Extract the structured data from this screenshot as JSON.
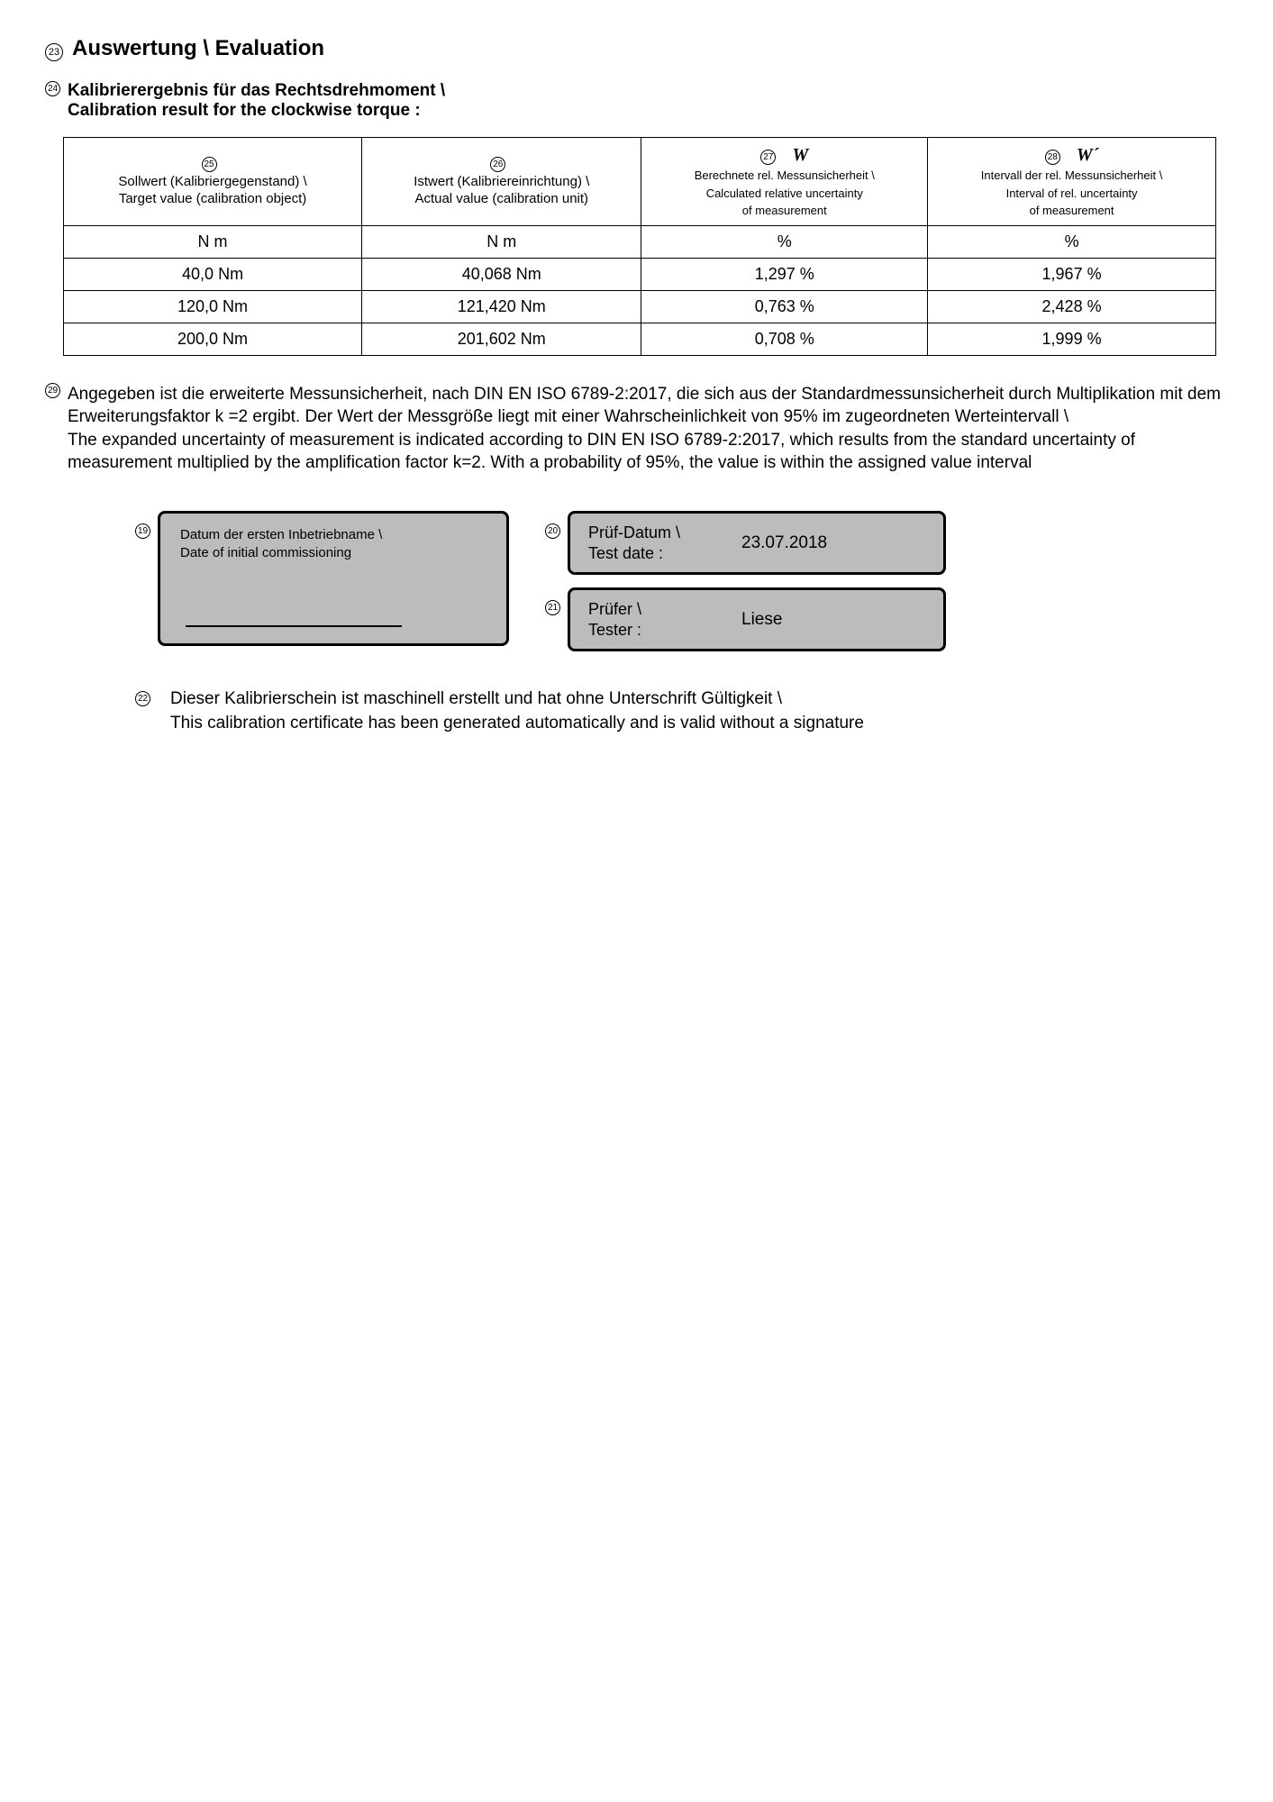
{
  "section": {
    "marker": "23",
    "title": "Auswertung \\ Evaluation"
  },
  "subheading": {
    "marker": "24",
    "line1": "Kalibrierergebnis für das Rechtsdrehmoment \\",
    "line2": "Calibration result for the clockwise torque :"
  },
  "table": {
    "columns": [
      {
        "marker": "25",
        "symbol": "",
        "main": "Sollwert (Kalibriergegenstand) \\",
        "sub": "Target value (calibration object)",
        "unit": "N m"
      },
      {
        "marker": "26",
        "symbol": "",
        "main": "Istwert (Kalibriereinrichtung) \\",
        "sub": "Actual value (calibration unit)",
        "unit": "N m"
      },
      {
        "marker": "27",
        "symbol": "W",
        "main": "Berechnete rel. Messunsicherheit \\",
        "sub1": "Calculated relative uncertainty",
        "sub2": "of measurement",
        "unit": "%"
      },
      {
        "marker": "28",
        "symbol": "W´",
        "main": "Intervall der rel. Messunsicherheit \\",
        "sub1": "Interval of rel. uncertainty",
        "sub2": "of measurement",
        "unit": "%"
      }
    ],
    "rows": [
      {
        "target": "40,0 Nm",
        "actual": "40,068 Nm",
        "w": "1,297 %",
        "wp": "1,967 %"
      },
      {
        "target": "120,0 Nm",
        "actual": "121,420 Nm",
        "w": "0,763 %",
        "wp": "2,428 %"
      },
      {
        "target": "200,0 Nm",
        "actual": "201,602 Nm",
        "w": "0,708 %",
        "wp": "1,999 %"
      }
    ]
  },
  "note": {
    "marker": "29",
    "de": "Angegeben ist die erweiterte Messunsicherheit, nach DIN EN ISO 6789-2:2017, die sich aus der Standardmessunsicherheit durch Multiplikation mit dem Erweiterungsfaktor k =2 ergibt. Der Wert der Messgröße liegt mit einer Wahrscheinlichkeit von 95% im zugeordneten Werteintervall \\",
    "en": "The expanded uncertainty of measurement is indicated according to DIN EN ISO 6789-2:2017, which results from the standard uncertainty of measurement multiplied by the amplification factor k=2. With a probability of 95%, the value is within the assigned value interval"
  },
  "commissioning": {
    "marker": "19",
    "label_de": "Datum der ersten Inbetriebname \\",
    "label_en": "Date of initial commissioning"
  },
  "testdate": {
    "marker": "20",
    "label": "Prüf-Datum \\\nTest date :",
    "value": "23.07.2018"
  },
  "tester": {
    "marker": "21",
    "label": "Prüfer \\\nTester :",
    "value": "Liese"
  },
  "footer": {
    "marker": "22",
    "de": "Dieser Kalibrierschein ist maschinell erstellt und hat ohne Unterschrift Gültigkeit \\",
    "en": "This calibration certificate has been generated automatically and is valid without a signature"
  }
}
